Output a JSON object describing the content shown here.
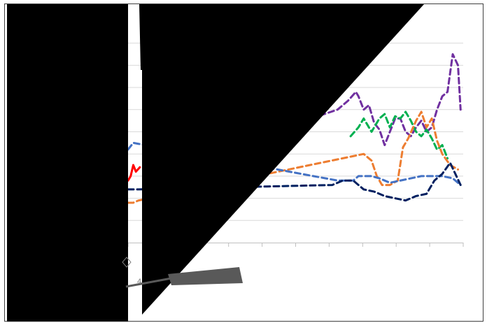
{
  "chart_data": {
    "type": "line",
    "title": "",
    "xlabel": "",
    "ylabel": "",
    "legend": "none",
    "grid": "horizontal",
    "ylim": [
      0,
      10
    ],
    "x_ticks": 11,
    "series": [
      {
        "color": "#7030a0",
        "style": "dashed",
        "values": [
          [
            7.0,
            5.6
          ],
          [
            7.5,
            5.8
          ],
          [
            8.0,
            6.0
          ],
          [
            8.4,
            6.4
          ],
          [
            8.7,
            6.8
          ],
          [
            8.8,
            6.6
          ],
          [
            9.0,
            6.0
          ],
          [
            9.2,
            6.2
          ],
          [
            9.4,
            5.4
          ],
          [
            9.6,
            5.1
          ],
          [
            9.8,
            4.4
          ],
          [
            10.0,
            5.0
          ],
          [
            10.2,
            5.6
          ],
          [
            10.4,
            5.6
          ],
          [
            10.6,
            5.0
          ],
          [
            10.8,
            4.8
          ],
          [
            11.0,
            5.2
          ],
          [
            11.2,
            5.5
          ],
          [
            11.4,
            5.0
          ],
          [
            11.6,
            5.2
          ],
          [
            11.8,
            6.0
          ],
          [
            12.0,
            6.6
          ],
          [
            12.2,
            6.8
          ],
          [
            12.4,
            8.5
          ],
          [
            12.6,
            8.0
          ],
          [
            12.7,
            6.0
          ]
        ]
      },
      {
        "color": "#00b050",
        "style": "dashed",
        "values": [
          [
            8.5,
            4.8
          ],
          [
            8.8,
            5.2
          ],
          [
            9.0,
            5.6
          ],
          [
            9.3,
            5.0
          ],
          [
            9.6,
            5.6
          ],
          [
            9.8,
            5.8
          ],
          [
            10.0,
            5.2
          ],
          [
            10.2,
            5.7
          ],
          [
            10.4,
            5.6
          ],
          [
            10.6,
            5.9
          ],
          [
            10.8,
            5.5
          ],
          [
            11.0,
            5.0
          ],
          [
            11.2,
            4.8
          ],
          [
            11.4,
            5.1
          ],
          [
            11.6,
            4.7
          ],
          [
            11.8,
            4.2
          ],
          [
            12.0,
            4.4
          ],
          [
            12.2,
            3.8
          ]
        ]
      },
      {
        "color": "#ed7d31",
        "style": "dashed",
        "values": [
          [
            0.0,
            1.8
          ],
          [
            0.2,
            1.8
          ],
          [
            0.4,
            1.9
          ],
          [
            9.0,
            4.0
          ],
          [
            9.3,
            3.7
          ],
          [
            9.5,
            3.0
          ],
          [
            9.7,
            2.6
          ],
          [
            10.0,
            2.6
          ],
          [
            10.3,
            2.8
          ],
          [
            10.5,
            4.3
          ],
          [
            10.7,
            4.7
          ],
          [
            11.0,
            5.5
          ],
          [
            11.2,
            5.9
          ],
          [
            11.4,
            5.2
          ],
          [
            11.6,
            5.6
          ],
          [
            11.8,
            4.6
          ],
          [
            12.0,
            4.0
          ],
          [
            12.3,
            3.5
          ],
          [
            12.6,
            3.3
          ]
        ]
      },
      {
        "color": "#4472c4",
        "style": "dashed",
        "values": [
          [
            0.0,
            4.2
          ],
          [
            0.2,
            4.5
          ],
          [
            8.0,
            2.8
          ],
          [
            8.6,
            2.8
          ],
          [
            8.8,
            3.0
          ],
          [
            9.3,
            3.0
          ],
          [
            9.6,
            2.9
          ],
          [
            10.0,
            2.7
          ],
          [
            10.4,
            2.8
          ],
          [
            10.8,
            2.9
          ],
          [
            11.2,
            3.0
          ],
          [
            11.6,
            3.0
          ],
          [
            12.0,
            3.0
          ],
          [
            12.4,
            2.9
          ],
          [
            12.7,
            2.6
          ]
        ]
      },
      {
        "color": "#002060",
        "style": "dashed",
        "values": [
          [
            0.0,
            2.4
          ],
          [
            0.4,
            2.4
          ],
          [
            7.8,
            2.6
          ],
          [
            8.2,
            2.8
          ],
          [
            8.6,
            2.8
          ],
          [
            9.0,
            2.4
          ],
          [
            9.4,
            2.3
          ],
          [
            9.8,
            2.1
          ],
          [
            10.2,
            2.0
          ],
          [
            10.6,
            1.9
          ],
          [
            11.0,
            2.1
          ],
          [
            11.4,
            2.2
          ],
          [
            11.7,
            2.8
          ],
          [
            12.0,
            3.1
          ],
          [
            12.3,
            3.6
          ],
          [
            12.7,
            2.6
          ]
        ]
      },
      {
        "color": "#ff0000",
        "style": "solid",
        "values": [
          [
            0.0,
            2.8
          ],
          [
            0.1,
            3.0
          ],
          [
            0.2,
            3.5
          ],
          [
            0.3,
            3.2
          ],
          [
            0.45,
            3.4
          ]
        ]
      }
    ]
  }
}
